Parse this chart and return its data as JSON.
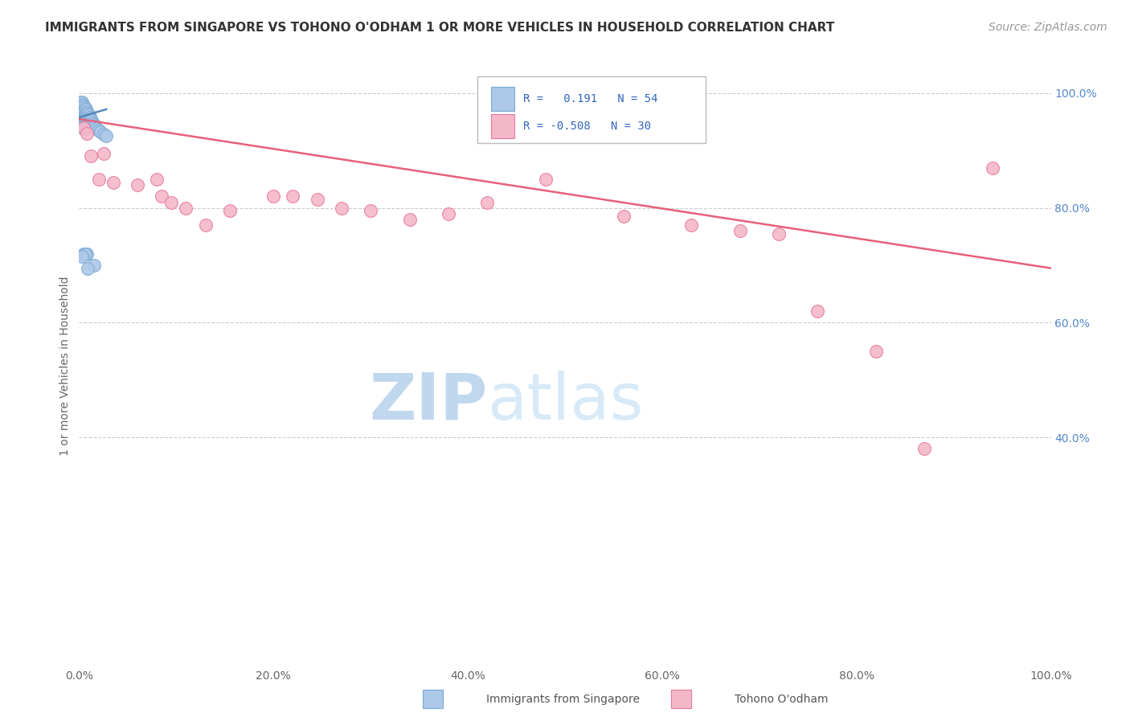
{
  "title": "IMMIGRANTS FROM SINGAPORE VS TOHONO O'ODHAM 1 OR MORE VEHICLES IN HOUSEHOLD CORRELATION CHART",
  "source_text": "Source: ZipAtlas.com",
  "ylabel": "1 or more Vehicles in Household",
  "xmin": 0.0,
  "xmax": 1.0,
  "ymin": 0.0,
  "ymax": 1.05,
  "ytick_values": [
    0.4,
    0.6,
    0.8,
    1.0
  ],
  "xtick_values": [
    0.0,
    0.2,
    0.4,
    0.6,
    0.8,
    1.0
  ],
  "blue_color": "#adc8e8",
  "pink_color": "#f5b8c8",
  "blue_edge": "#7aaad4",
  "pink_edge": "#e878a0",
  "blue_line_color": "#5588bb",
  "pink_line_color": "#e8607a",
  "blue_scatter_x": [
    0.001,
    0.001,
    0.002,
    0.002,
    0.002,
    0.003,
    0.003,
    0.003,
    0.003,
    0.004,
    0.004,
    0.004,
    0.004,
    0.005,
    0.005,
    0.005,
    0.005,
    0.005,
    0.006,
    0.006,
    0.006,
    0.006,
    0.007,
    0.007,
    0.007,
    0.007,
    0.008,
    0.008,
    0.008,
    0.008,
    0.009,
    0.009,
    0.009,
    0.01,
    0.01,
    0.01,
    0.011,
    0.011,
    0.012,
    0.013,
    0.014,
    0.015,
    0.016,
    0.018,
    0.02,
    0.022,
    0.025,
    0.028,
    0.005,
    0.008,
    0.006,
    0.003,
    0.015,
    0.009
  ],
  "blue_scatter_y": [
    0.985,
    0.975,
    0.98,
    0.97,
    0.96,
    0.985,
    0.975,
    0.965,
    0.955,
    0.98,
    0.97,
    0.96,
    0.95,
    0.978,
    0.968,
    0.958,
    0.948,
    0.938,
    0.975,
    0.965,
    0.955,
    0.945,
    0.972,
    0.962,
    0.952,
    0.942,
    0.968,
    0.958,
    0.948,
    0.938,
    0.965,
    0.955,
    0.945,
    0.962,
    0.952,
    0.942,
    0.958,
    0.948,
    0.955,
    0.952,
    0.948,
    0.945,
    0.942,
    0.938,
    0.935,
    0.932,
    0.928,
    0.925,
    0.72,
    0.72,
    0.72,
    0.715,
    0.7,
    0.695
  ],
  "pink_scatter_x": [
    0.005,
    0.008,
    0.012,
    0.02,
    0.025,
    0.035,
    0.06,
    0.08,
    0.085,
    0.095,
    0.11,
    0.13,
    0.155,
    0.2,
    0.22,
    0.245,
    0.27,
    0.3,
    0.34,
    0.38,
    0.42,
    0.48,
    0.56,
    0.63,
    0.68,
    0.72,
    0.76,
    0.82,
    0.87,
    0.94
  ],
  "pink_scatter_y": [
    0.94,
    0.93,
    0.89,
    0.85,
    0.895,
    0.845,
    0.84,
    0.85,
    0.82,
    0.81,
    0.8,
    0.77,
    0.795,
    0.82,
    0.82,
    0.815,
    0.8,
    0.795,
    0.78,
    0.79,
    0.81,
    0.85,
    0.785,
    0.77,
    0.76,
    0.755,
    0.62,
    0.55,
    0.38,
    0.87
  ],
  "blue_trend_x": [
    0.0,
    0.028
  ],
  "blue_trend_y": [
    0.958,
    0.972
  ],
  "pink_trend_x": [
    0.0,
    1.0
  ],
  "pink_trend_y": [
    0.955,
    0.695
  ],
  "title_fontsize": 11,
  "axis_label_fontsize": 10,
  "tick_fontsize": 10,
  "source_fontsize": 10,
  "watermark_zip_fontsize": 58,
  "watermark_atlas_fontsize": 58,
  "watermark_zip_color": "#c0d8ee",
  "watermark_atlas_color": "#d8eaf8",
  "background_color": "#ffffff",
  "grid_color": "#cccccc"
}
